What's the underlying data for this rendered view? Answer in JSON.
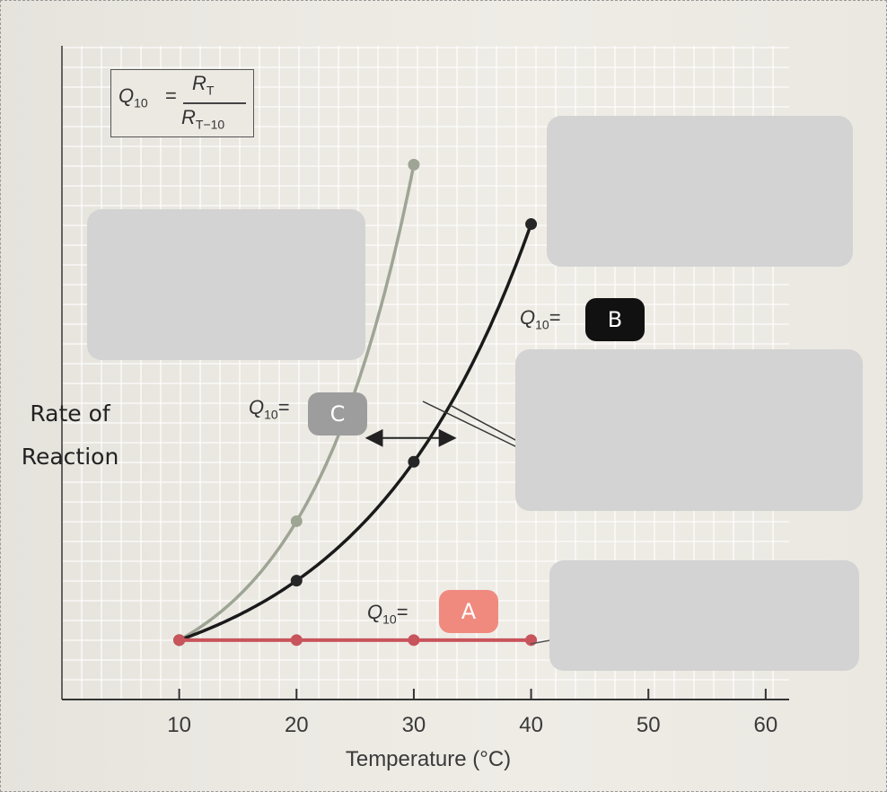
{
  "formula": {
    "lhs": "Q",
    "lhs_sub": "10",
    "numerator": "R",
    "numerator_sub": "T",
    "denominator": "R",
    "denominator_sub": "T−10"
  },
  "annotations": {
    "q10_prefix": "Q",
    "q10_sub": "10",
    "equals": "=",
    "badge_a": "A",
    "badge_b": "B",
    "badge_c": "C"
  },
  "colors": {
    "series_c": "#9ea595",
    "series_b": "#1a1a1a",
    "series_a": "#c8545c",
    "badge_a": "#f08a7e",
    "badge_b": "#111111",
    "badge_c": "#9d9d9d",
    "hidden_box": "#d3d3d3"
  },
  "chart_data": {
    "type": "line",
    "xlabel": "Temperature (°C)",
    "ylabel": "Rate of Reaction",
    "xlim": [
      0,
      62
    ],
    "ylim": [
      0,
      11
    ],
    "x_ticks": [
      10,
      20,
      30,
      40,
      50,
      60
    ],
    "grid": true,
    "series": [
      {
        "x": [
          10,
          20,
          30
        ],
        "values": [
          1,
          3,
          9
        ]
      },
      {
        "x": [
          10,
          20,
          30,
          40
        ],
        "values": [
          1,
          2,
          4,
          8
        ]
      },
      {
        "x": [
          10,
          20,
          30,
          40
        ],
        "values": [
          1,
          1,
          1,
          1
        ]
      }
    ],
    "double_arrow": {
      "from": [
        26,
        4.4
      ],
      "to": [
        33.5,
        4.4
      ]
    }
  }
}
